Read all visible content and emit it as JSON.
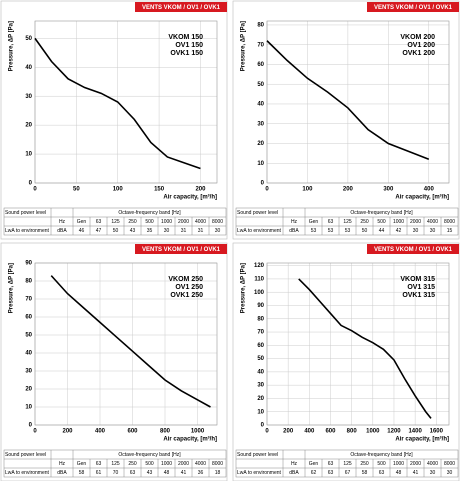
{
  "chart_data": [
    {
      "type": "line",
      "header": "VENTS VKOM / OV1 / OVK1",
      "ylabel": "Pressure, ΔP [Pa]",
      "xlabel": "Air capacity, [m³/h]",
      "models": [
        "VKOM 150",
        "OV1 150",
        "OVK1 150"
      ],
      "xlim": [
        0,
        220
      ],
      "xticks": [
        0,
        50,
        100,
        150,
        200
      ],
      "ylim": [
        0,
        56
      ],
      "yticks": [
        0,
        10,
        20,
        30,
        40,
        50
      ],
      "grid": true,
      "color": "#000000",
      "x": [
        0,
        20,
        40,
        60,
        80,
        100,
        120,
        140,
        160,
        180,
        200
      ],
      "values": [
        50,
        42,
        36,
        33,
        31,
        28,
        22,
        14,
        9,
        7,
        5
      ],
      "table": {
        "title": "Sound power level",
        "band_title": "Octave-frequency band [Hz]",
        "unit_label": "Hz",
        "gen": "Gen",
        "bands": [
          63,
          125,
          250,
          500,
          1000,
          2000,
          4000,
          8000
        ],
        "row_label": "LwA to environment",
        "row_unit": "dBA",
        "values": [
          46,
          47,
          50,
          43,
          35,
          30,
          31,
          31,
          30
        ]
      }
    },
    {
      "type": "line",
      "header": "VENTS VKOM / OV1 / OVK1",
      "ylabel": "Pressure, ΔP [Pa]",
      "xlabel": "Air capacity, [m³/h]",
      "models": [
        "VKOM 200",
        "OV1 200",
        "OVK1 200"
      ],
      "xlim": [
        0,
        450
      ],
      "xticks": [
        0,
        100,
        200,
        300,
        400
      ],
      "ylim": [
        0,
        82
      ],
      "yticks": [
        0,
        10,
        20,
        30,
        40,
        50,
        60,
        70,
        80
      ],
      "grid": true,
      "color": "#000000",
      "x": [
        0,
        50,
        100,
        150,
        200,
        250,
        300,
        350,
        400
      ],
      "values": [
        72,
        62,
        53,
        46,
        38,
        27,
        20,
        16,
        12
      ],
      "table": {
        "title": "Sound power level",
        "band_title": "Octave-frequency band [Hz]",
        "unit_label": "Hz",
        "gen": "Gen",
        "bands": [
          63,
          125,
          250,
          500,
          1000,
          2000,
          4000,
          8000
        ],
        "row_label": "LwA to environment",
        "row_unit": "dBA",
        "values": [
          53,
          53,
          53,
          50,
          44,
          42,
          30,
          30,
          15
        ]
      }
    },
    {
      "type": "line",
      "header": "VENTS VKOM / OV1 / OVK1",
      "ylabel": "Pressure, ΔP [Pa]",
      "xlabel": "Air capacity, [m³/h]",
      "models": [
        "VKOM 250",
        "OV1 250",
        "OVK1 250"
      ],
      "xlim": [
        0,
        1120
      ],
      "xticks": [
        0,
        200,
        400,
        600,
        800,
        1000
      ],
      "ylim": [
        0,
        90
      ],
      "yticks": [
        0,
        10,
        20,
        30,
        40,
        50,
        60,
        70,
        80,
        90
      ],
      "grid": true,
      "color": "#000000",
      "x": [
        100,
        200,
        300,
        400,
        500,
        600,
        700,
        800,
        900,
        1000,
        1080
      ],
      "values": [
        83,
        73,
        65,
        57,
        49,
        41,
        33,
        25,
        19,
        14,
        10
      ],
      "table": {
        "title": "Sound power level",
        "band_title": "Octave-frequency band [Hz]",
        "unit_label": "Hz",
        "gen": "Gen",
        "bands": [
          63,
          125,
          250,
          500,
          1000,
          2000,
          4000,
          8000
        ],
        "row_label": "LwA to environment",
        "row_unit": "dBA",
        "values": [
          58,
          61,
          70,
          63,
          43,
          48,
          41,
          36,
          18
        ]
      }
    },
    {
      "type": "line",
      "header": "VENTS VKOM / OV1 / OVK1",
      "ylabel": "Pressure, ΔP [Pa]",
      "xlabel": "Air capacity, [m³/h]",
      "models": [
        "VKOM 315",
        "OV1 315",
        "OVK1 315"
      ],
      "xlim": [
        0,
        1720
      ],
      "xticks": [
        0,
        200,
        400,
        600,
        800,
        1000,
        1200,
        1400,
        1600
      ],
      "ylim": [
        0,
        122
      ],
      "yticks": [
        0,
        10,
        20,
        30,
        40,
        50,
        60,
        70,
        80,
        90,
        100,
        110,
        120
      ],
      "grid": true,
      "color": "#000000",
      "x": [
        300,
        400,
        500,
        600,
        700,
        800,
        900,
        1000,
        1100,
        1200,
        1300,
        1400,
        1500,
        1550
      ],
      "values": [
        110,
        102,
        93,
        84,
        75,
        71,
        66,
        62,
        57,
        49,
        35,
        22,
        10,
        5
      ],
      "table": {
        "title": "Sound power level",
        "band_title": "Octave-frequency band [Hz]",
        "unit_label": "Hz",
        "gen": "Gen",
        "bands": [
          63,
          125,
          250,
          500,
          1000,
          2000,
          4000,
          8000
        ],
        "row_label": "LwA to environment",
        "row_unit": "dBA",
        "values": [
          62,
          63,
          67,
          58,
          63,
          48,
          41,
          30,
          30
        ]
      }
    }
  ]
}
